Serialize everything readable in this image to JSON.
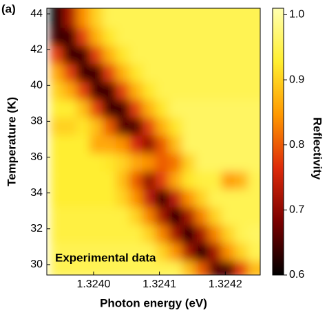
{
  "chart_data": {
    "type": "heatmap",
    "panel_label": "(a)",
    "annotation": "Experimental data",
    "xlabel": "Photon energy (eV)",
    "ylabel": "Temperature (K)",
    "colorbar_label": "Reflectivity",
    "x": [
      1.32395,
      1.32397,
      1.32399,
      1.32401,
      1.32403,
      1.32405,
      1.32407,
      1.32409,
      1.32411,
      1.32413,
      1.32415,
      1.32417,
      1.32419,
      1.32421,
      1.32423,
      1.32425
    ],
    "y": [
      30,
      31,
      32,
      33,
      34,
      35,
      36,
      37,
      38,
      39,
      40,
      41,
      42,
      43,
      44
    ],
    "z": [
      [
        0.95,
        0.95,
        0.95,
        0.95,
        0.95,
        0.95,
        0.95,
        0.95,
        0.95,
        0.95,
        0.88,
        0.8,
        0.66,
        0.65,
        0.78,
        0.88
      ],
      [
        0.95,
        0.95,
        0.95,
        0.95,
        0.95,
        0.95,
        0.95,
        0.95,
        0.9,
        0.84,
        0.72,
        0.6,
        0.72,
        0.84,
        0.9,
        0.95
      ],
      [
        0.94,
        0.94,
        0.94,
        0.94,
        0.94,
        0.94,
        0.94,
        0.9,
        0.83,
        0.72,
        0.6,
        0.72,
        0.83,
        0.9,
        0.95,
        0.96
      ],
      [
        0.94,
        0.94,
        0.94,
        0.94,
        0.94,
        0.94,
        0.9,
        0.83,
        0.72,
        0.6,
        0.72,
        0.83,
        0.9,
        0.95,
        0.95,
        0.95
      ],
      [
        0.93,
        0.93,
        0.93,
        0.93,
        0.93,
        0.9,
        0.84,
        0.74,
        0.62,
        0.74,
        0.84,
        0.9,
        0.95,
        0.95,
        0.95,
        0.95
      ],
      [
        0.93,
        0.93,
        0.93,
        0.93,
        0.93,
        0.88,
        0.8,
        0.7,
        0.78,
        0.86,
        0.92,
        0.94,
        0.94,
        0.85,
        0.87,
        0.95
      ],
      [
        0.93,
        0.93,
        0.93,
        0.93,
        0.92,
        0.9,
        0.86,
        0.84,
        0.8,
        0.82,
        0.9,
        0.96,
        0.96,
        0.96,
        0.96,
        0.96
      ],
      [
        0.93,
        0.93,
        0.93,
        0.86,
        0.86,
        0.84,
        0.76,
        0.7,
        0.8,
        0.88,
        0.96,
        0.96,
        0.96,
        0.96,
        0.96,
        0.96
      ],
      [
        0.9,
        0.9,
        0.92,
        0.88,
        0.8,
        0.66,
        0.65,
        0.78,
        0.87,
        0.92,
        0.96,
        0.96,
        0.96,
        0.96,
        0.96,
        0.96
      ],
      [
        0.93,
        0.93,
        0.88,
        0.78,
        0.64,
        0.64,
        0.78,
        0.87,
        0.92,
        0.96,
        0.96,
        0.96,
        0.96,
        0.96,
        0.96,
        0.96
      ],
      [
        0.9,
        0.86,
        0.78,
        0.64,
        0.64,
        0.78,
        0.87,
        0.92,
        0.95,
        0.95,
        0.95,
        0.95,
        0.95,
        0.95,
        0.95,
        0.95
      ],
      [
        0.86,
        0.78,
        0.64,
        0.64,
        0.78,
        0.87,
        0.92,
        0.95,
        0.95,
        0.95,
        0.95,
        0.95,
        0.95,
        0.95,
        0.95,
        0.95
      ],
      [
        0.78,
        0.64,
        0.64,
        0.78,
        0.87,
        0.92,
        0.95,
        0.95,
        0.95,
        0.95,
        0.95,
        0.95,
        0.95,
        0.95,
        0.95,
        0.95
      ],
      [
        0.64,
        0.64,
        0.78,
        0.87,
        0.92,
        0.95,
        0.95,
        0.95,
        0.95,
        0.95,
        0.95,
        0.95,
        0.95,
        0.95,
        0.95,
        0.95
      ],
      [
        0.6,
        0.72,
        0.84,
        0.9,
        0.95,
        0.95,
        0.95,
        0.95,
        0.95,
        0.95,
        0.95,
        0.95,
        0.95,
        0.95,
        0.95,
        0.95
      ]
    ],
    "xlim": [
      1.323929,
      1.324253
    ],
    "ylim": [
      29.42,
      44.31
    ],
    "zlim": [
      0.6,
      1.01
    ],
    "xticks": [
      {
        "value": 1.324,
        "label": "1.3240"
      },
      {
        "value": 1.3241,
        "label": "1.3241"
      },
      {
        "value": 1.3242,
        "label": "1.3242"
      }
    ],
    "yticks": [
      30,
      32,
      34,
      36,
      38,
      40,
      42,
      44
    ],
    "zticks": [
      0.6,
      0.7,
      0.8,
      0.9,
      {
        "value": 1.0,
        "label": "1.0"
      }
    ],
    "colors": [
      "#000000",
      "#7a0000",
      "#dd2a0a",
      "#ff9800",
      "#ffee30",
      "#ffffb0"
    ]
  }
}
